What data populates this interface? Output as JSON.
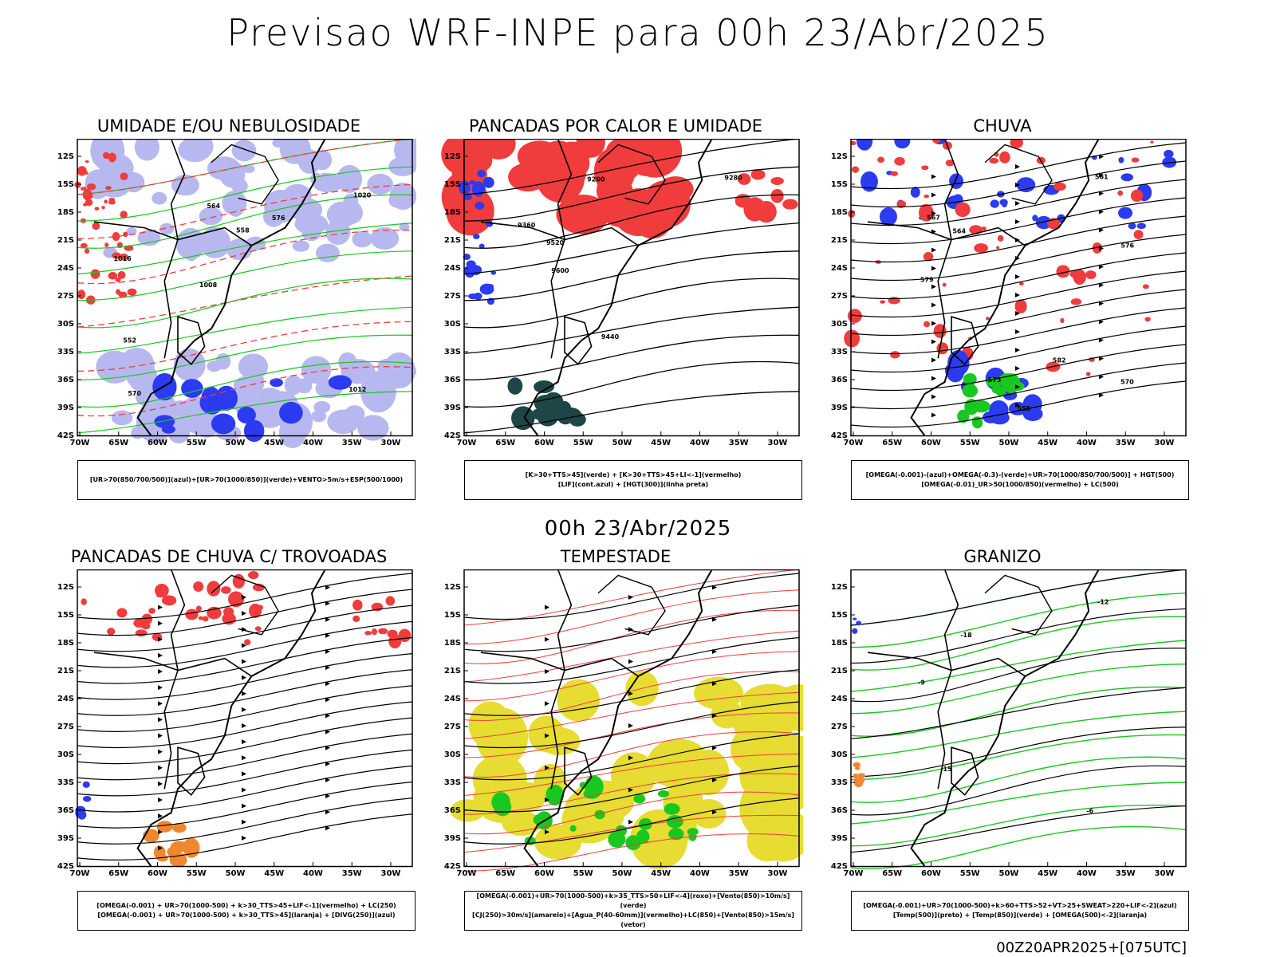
{
  "page": {
    "main_title": "Previsao WRF-INPE  para 00h 23/Abr/2025",
    "mid_title": "00h 23/Abr/2025",
    "footer_stamp": "00Z20APR2025+[075UTC]"
  },
  "axes": {
    "lat_labels": [
      "12S",
      "15S",
      "18S",
      "21S",
      "24S",
      "27S",
      "30S",
      "33S",
      "36S",
      "39S",
      "42S"
    ],
    "lon_labels": [
      "70W",
      "65W",
      "60W",
      "55W",
      "50W",
      "45W",
      "40W",
      "35W",
      "30W"
    ]
  },
  "panels": [
    {
      "id": "umidade",
      "title": "UMIDADE E/OU NEBULOSIDADE",
      "legend": [
        "[UR>70(850/700/500)](azul)+[UR>70(1000/850)](verde)+VENTO>5m/s+ESP(500/1000)"
      ],
      "contour_labels": [
        "1012",
        "1016",
        "1020",
        "1008",
        "576",
        "570",
        "564",
        "558",
        "552"
      ]
    },
    {
      "id": "pancadas-calor",
      "title": "PANCADAS POR CALOR E UMIDADE",
      "legend": [
        "[K>30+TTS>45](verde) + [K>30+TTS>45+LI<-1](vermelho)",
        "[LIF](cont.azul) + [HGT(300)](linha preta)"
      ],
      "contour_labels": [
        "9600",
        "9520",
        "9440",
        "9360",
        "9280",
        "9200"
      ]
    },
    {
      "id": "chuva",
      "title": "CHUVA",
      "legend": [
        "[OMEGA(-0.001)-(azul)+OMEGA(-0.3)-(verde)+UR>70(1000/850/700/500)] + HGT(500)",
        "[OMEGA(-0.01)_UR>50(1000/850)(vermelho) + LC(500)"
      ],
      "contour_labels": [
        "582",
        "579",
        "576",
        "573",
        "570",
        "567",
        "564",
        "561",
        "555"
      ]
    },
    {
      "id": "trovoadas",
      "title": "PANCADAS DE CHUVA C/ TROVOADAS",
      "legend": [
        "[OMEGA(-0.001) + UR>70(1000-500) + k>30_TTS>45+LIF<-1](vermelho) + LC(250)",
        "[OMEGA(-0.001) + UR>70(1000-500) + k>30_TTS>45](laranja) + [DIVG(250)](azul)"
      ],
      "contour_labels": []
    },
    {
      "id": "tempestade",
      "title": "TEMPESTADE",
      "legend": [
        "[OMEGA(-0.001)+UR>70(1000-500)+k>35_TTS>50+LIF<-4](roxo)+[Vento(850)>10m/s](verde)",
        "[CJ(250)>30m/s](amarelo)+[Agua_P(40-60mm)](vermelho)+LC(850)+[Vento(850)>15m/s](vetor)"
      ],
      "contour_labels": []
    },
    {
      "id": "granizo",
      "title": "GRANIZO",
      "legend": [
        "[OMEGA(-0.001)+UR>70(1000-500)+k>60+TTS>52+VT>25+SWEAT>220+LIF<-2](azul)",
        "[Temp(500)](preto) + [Temp(850)](verde) + [OMEGA(500)<-2](laranja)"
      ],
      "contour_labels": [
        "-12",
        "-15",
        "-18",
        "-6",
        "-9"
      ]
    }
  ],
  "colors": {
    "blue": "#2b3bf0",
    "light_blue": "#b8b8f0",
    "green": "#18c81e",
    "red": "#f03c3c",
    "dark_teal": "#1e4646",
    "yellow": "#e6dc32",
    "orange": "#f0872d"
  }
}
